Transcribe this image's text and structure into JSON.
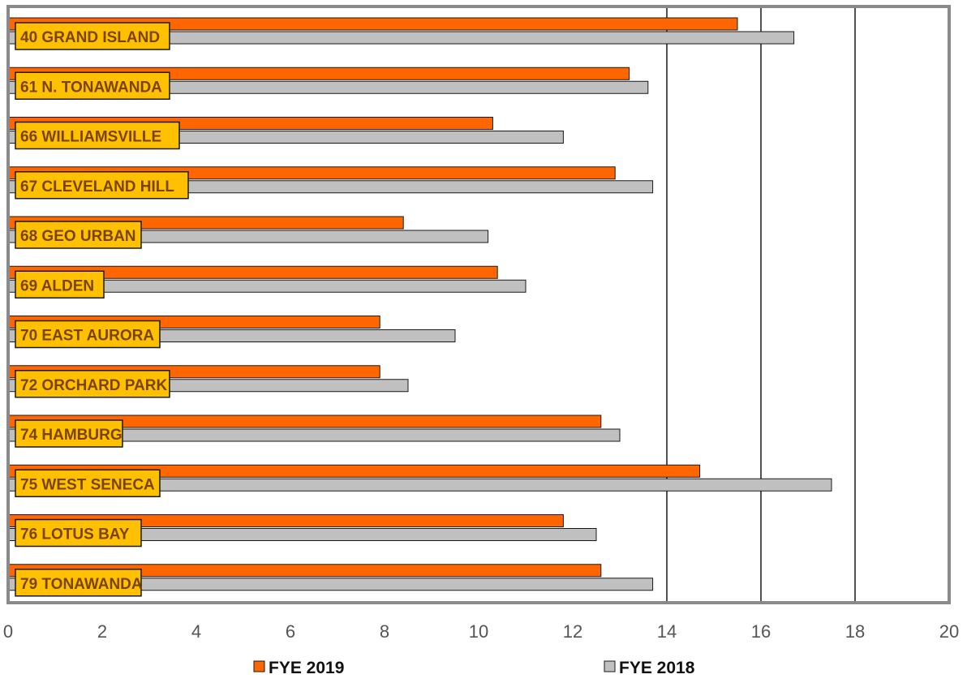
{
  "chart_data": {
    "type": "bar",
    "orientation": "horizontal",
    "title": "",
    "xlabel": "",
    "ylabel": "",
    "xlim": [
      0,
      20
    ],
    "x_ticks": [
      0,
      2,
      4,
      6,
      8,
      10,
      12,
      14,
      16,
      18,
      20
    ],
    "grid": "vertical lines at 14, 16, 18",
    "legend_position": "bottom",
    "categories": [
      "40 GRAND ISLAND",
      "61 N. TONAWANDA",
      "66 WILLIAMSVILLE",
      "67 CLEVELAND HILL",
      "68 GEO URBAN",
      "69 ALDEN",
      "70 EAST AURORA",
      "72 ORCHARD PARK",
      "74 HAMBURG",
      "75 WEST SENECA",
      "76 LOTUS BAY",
      "79 TONAWANDA"
    ],
    "series": [
      {
        "name": "FYE 2019",
        "color": "#ff6600",
        "values": [
          15.5,
          13.2,
          10.3,
          12.9,
          8.4,
          10.4,
          7.9,
          7.9,
          12.6,
          14.7,
          11.8,
          12.6
        ]
      },
      {
        "name": "FYE 2018",
        "color": "#c0c0c0",
        "values": [
          16.7,
          13.6,
          11.8,
          13.7,
          10.2,
          11.0,
          9.5,
          8.5,
          13.0,
          17.5,
          12.5,
          13.7
        ]
      }
    ],
    "label_box_color": "#ffc000"
  }
}
